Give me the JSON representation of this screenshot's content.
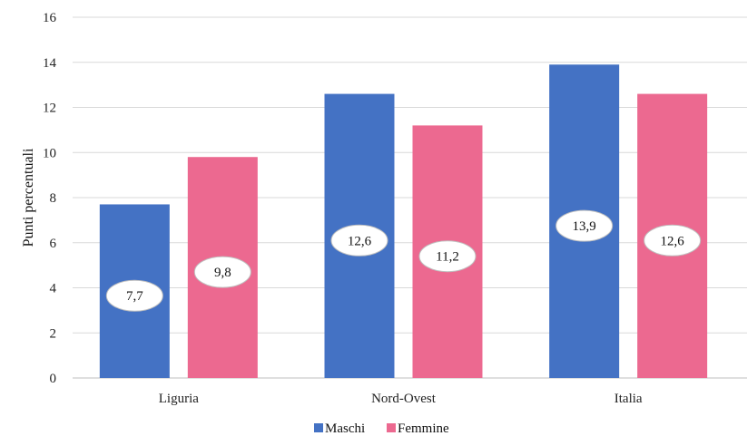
{
  "chart_data": {
    "type": "bar",
    "categories": [
      "Liguria",
      "Nord-Ovest",
      "Italia"
    ],
    "series": [
      {
        "name": "Maschi",
        "color": "#4472C4",
        "values": [
          7.7,
          12.6,
          13.9
        ],
        "labels": [
          "7,7",
          "12,6",
          "13,9"
        ]
      },
      {
        "name": "Femmine",
        "color": "#EC6990",
        "values": [
          9.8,
          11.2,
          12.6
        ],
        "labels": [
          "9,8",
          "11,2",
          "12,6"
        ]
      }
    ],
    "ylabel": "Punti percentuali",
    "ylim": [
      0,
      16
    ],
    "yticks": [
      0,
      2,
      4,
      6,
      8,
      10,
      12,
      14,
      16
    ],
    "grid": true,
    "legend_position": "bottom"
  }
}
